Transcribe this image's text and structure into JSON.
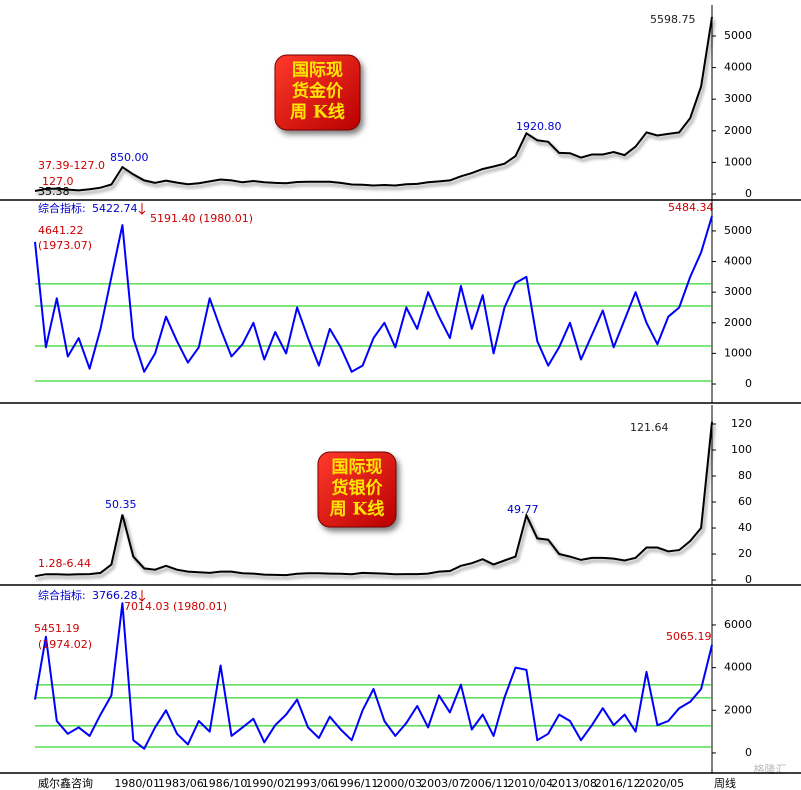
{
  "x_axis": {
    "categories": [
      null,
      null,
      null,
      null,
      null,
      null,
      null,
      null,
      "1980/01",
      null,
      null,
      null,
      "1983/06",
      null,
      null,
      null,
      "1986/10",
      null,
      null,
      null,
      "1990/02",
      null,
      null,
      null,
      "1993/06",
      null,
      null,
      null,
      "1996/11",
      null,
      null,
      null,
      "2000/03",
      null,
      null,
      null,
      "2003/07",
      null,
      null,
      null,
      "2006/11",
      null,
      null,
      null,
      "2010/04",
      null,
      null,
      null,
      "2013/08",
      null,
      null,
      null,
      "2016/12",
      null,
      null,
      null,
      "2020/05",
      null,
      null,
      null,
      null,
      null,
      null
    ],
    "source": "威尔鑫咨询",
    "period": "周线",
    "watermark": "格隆汇"
  },
  "chart_data": [
    {
      "type": "line",
      "title_lines": [
        "国际现",
        "货金价",
        "周 K线"
      ],
      "color": "#000000",
      "values": [
        95,
        160,
        170,
        140,
        115,
        150,
        200,
        300,
        850,
        620,
        430,
        350,
        420,
        360,
        310,
        340,
        400,
        460,
        430,
        370,
        410,
        370,
        350,
        340,
        380,
        385,
        385,
        390,
        350,
        300,
        290,
        270,
        285,
        270,
        310,
        320,
        370,
        400,
        430,
        560,
        660,
        790,
        870,
        960,
        1200,
        1920.8,
        1700,
        1650,
        1300,
        1290,
        1150,
        1250,
        1250,
        1330,
        1230,
        1500,
        1950,
        1850,
        1900,
        1950,
        2400,
        3400,
        5598.75
      ],
      "ylim": [
        -190,
        5980
      ],
      "yticks": [
        0,
        1000,
        2000,
        3000,
        4000,
        5000
      ],
      "annotations": [
        "5598.75",
        "1920.80",
        "850.00",
        "37.39-127.0",
        "127.0",
        "35.38"
      ]
    },
    {
      "type": "indicator",
      "indicator_label": "综合指标:",
      "indicator_value": "5422.74",
      "color": "#0000ff",
      "values": [
        4641.22,
        1200,
        2800,
        900,
        1500,
        500,
        1800,
        3500,
        5191.4,
        1500,
        400,
        1000,
        2200,
        1400,
        700,
        1200,
        2800,
        1800,
        900,
        1300,
        2000,
        800,
        1700,
        1000,
        2500,
        1500,
        600,
        1800,
        1200,
        400,
        600,
        1500,
        2000,
        1200,
        2500,
        1800,
        3000,
        2200,
        1500,
        3200,
        1800,
        2900,
        1000,
        2500,
        3300,
        3500,
        1400,
        600,
        1200,
        2000,
        800,
        1600,
        2400,
        1200,
        2100,
        3000,
        2000,
        1300,
        2200,
        2500,
        3500,
        4300,
        5484.34
      ],
      "ylim": [
        -620,
        6010
      ],
      "yticks": [
        0,
        1000,
        2000,
        3000,
        4000,
        5000
      ],
      "reference_lines": [
        3270,
        2550,
        1240,
        100
      ],
      "reference_color": "#00cc00",
      "annotations": [
        "5191.40 (1980.01)",
        "4641.22",
        "(1973.07)",
        "5484.34"
      ]
    },
    {
      "type": "line",
      "title_lines": [
        "国际现",
        "货银价",
        "周 K线"
      ],
      "color": "#000000",
      "values": [
        3,
        4.5,
        4.5,
        4.2,
        4.4,
        4.6,
        5.5,
        12,
        50.35,
        18,
        9,
        8,
        11,
        8,
        6.5,
        6,
        5.5,
        6.5,
        6.5,
        5.2,
        5,
        4.2,
        4,
        3.8,
        4.8,
        5.3,
        5.2,
        5,
        4.8,
        4.5,
        5.5,
        5.2,
        5,
        4.4,
        4.6,
        4.6,
        5,
        6.5,
        7,
        11,
        13,
        16,
        12,
        15,
        18,
        49.77,
        32,
        31,
        20,
        18,
        15.5,
        17,
        17,
        16.5,
        15,
        17,
        25,
        25,
        22,
        23,
        30,
        40,
        121.64
      ],
      "ylim": [
        -3.8,
        134.6
      ],
      "yticks": [
        0,
        20,
        40,
        60,
        80,
        100,
        120
      ],
      "annotations": [
        "121.64",
        "50.35",
        "49.77",
        "1.28-6.44"
      ]
    },
    {
      "type": "indicator",
      "indicator_label": "综合指标:",
      "indicator_value": "3766.28",
      "color": "#0000ff",
      "values": [
        2500,
        5451.19,
        1500,
        900,
        1200,
        800,
        1800,
        2700,
        7014.03,
        600,
        200,
        1200,
        2000,
        900,
        400,
        1500,
        1000,
        4100,
        800,
        1200,
        1600,
        500,
        1300,
        1800,
        2500,
        1200,
        700,
        1700,
        1100,
        600,
        2000,
        3000,
        1500,
        800,
        1400,
        2200,
        1200,
        2700,
        1900,
        3200,
        1100,
        1800,
        800,
        2600,
        4000,
        3900,
        600,
        900,
        1800,
        1500,
        600,
        1300,
        2100,
        1300,
        1800,
        1000,
        3800,
        1300,
        1500,
        2100,
        2400,
        3000,
        5065.19
      ],
      "ylim": [
        -940,
        7780
      ],
      "yticks": [
        0,
        2000,
        4000,
        6000
      ],
      "reference_lines": [
        3190,
        2580,
        1270,
        280
      ],
      "reference_color": "#00cc00",
      "annotations": [
        "7014.03 (1980.01)",
        "5451.19",
        "(1974.02)",
        "5065.19"
      ]
    }
  ]
}
